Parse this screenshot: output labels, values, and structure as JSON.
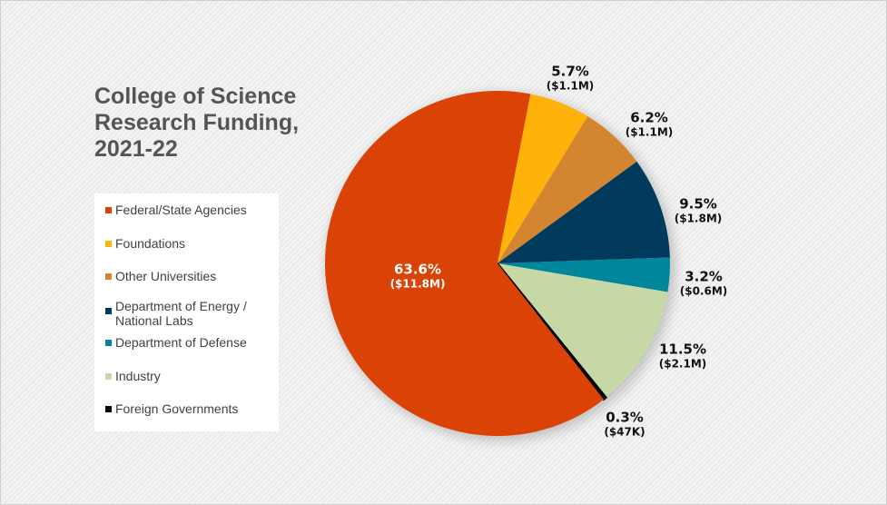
{
  "chart_data": {
    "type": "pie",
    "title": "College of Science Research Funding, 2021-22",
    "title_lines": [
      "College of Science",
      "Research Funding,",
      "2021-22"
    ],
    "legend_position": "left",
    "slices": [
      {
        "name": "Federal/State Agencies",
        "percent": 63.6,
        "amount": "($11.8M)",
        "percent_label": "63.6%",
        "color": "#db4205"
      },
      {
        "name": "Foundations",
        "percent": 5.7,
        "amount": "($1.1M)",
        "percent_label": "5.7%",
        "color": "#ffb20a"
      },
      {
        "name": "Other Universities",
        "percent": 6.2,
        "amount": "($1.1M)",
        "percent_label": "6.2%",
        "color": "#d48530"
      },
      {
        "name": "Department of Energy / National Labs",
        "name_lines": [
          "Department of Energy /",
          "National Labs"
        ],
        "percent": 9.5,
        "amount": "($1.8M)",
        "percent_label": "9.5%",
        "color": "#003a5c"
      },
      {
        "name": "Department of Defense",
        "percent": 3.2,
        "amount": "($0.6M)",
        "percent_label": "3.2%",
        "color": "#00879c"
      },
      {
        "name": "Industry",
        "percent": 11.5,
        "amount": "($2.1M)",
        "percent_label": "11.5%",
        "color": "#c5d8a6"
      },
      {
        "name": "Foreign Governments",
        "percent": 0.3,
        "amount": "($47K)",
        "percent_label": "0.3%",
        "color": "#000000"
      }
    ]
  }
}
